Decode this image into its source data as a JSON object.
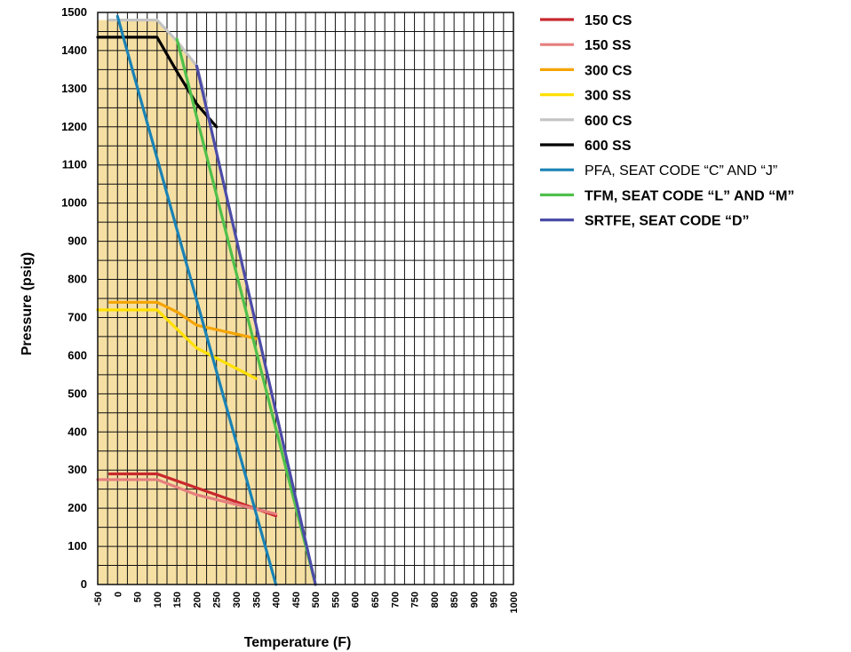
{
  "chart_data": {
    "type": "line",
    "xlabel": "Temperature (F)",
    "ylabel": "Pressure (psig)",
    "xlim": [
      -50,
      1000
    ],
    "ylim": [
      0,
      1500
    ],
    "x_ticks": [
      "-50",
      "0",
      "50",
      "100",
      "150",
      "200",
      "250",
      "300",
      "350",
      "400",
      "450",
      "500",
      "550",
      "600",
      "650",
      "700",
      "750",
      "800",
      "850",
      "900",
      "950",
      "1000"
    ],
    "y_ticks": [
      "0",
      "100",
      "200",
      "300",
      "400",
      "500",
      "600",
      "700",
      "800",
      "900",
      "1000",
      "1100",
      "1200",
      "1300",
      "1400",
      "1500"
    ],
    "grid": true,
    "legend_position": "top-right",
    "fill_color": "#f6dfa3",
    "fill_region": [
      [
        -50,
        0
      ],
      [
        -50,
        1480
      ],
      [
        100,
        1480
      ],
      [
        150,
        1425
      ],
      [
        200,
        1360
      ],
      [
        500,
        0
      ]
    ],
    "series": [
      {
        "name": "150 CS",
        "color": "#c8282d",
        "points": [
          [
            -20,
            290
          ],
          [
            100,
            290
          ],
          [
            400,
            180
          ]
        ]
      },
      {
        "name": "150 SS",
        "color": "#e57e7e",
        "points": [
          [
            -50,
            275
          ],
          [
            100,
            275
          ],
          [
            200,
            235
          ],
          [
            400,
            185
          ]
        ]
      },
      {
        "name": "300 CS",
        "color": "#f5a400",
        "points": [
          [
            -20,
            740
          ],
          [
            100,
            740
          ],
          [
            150,
            715
          ],
          [
            200,
            680
          ],
          [
            350,
            645
          ]
        ]
      },
      {
        "name": "300 SS",
        "color": "#ffe000",
        "points": [
          [
            -50,
            720
          ],
          [
            100,
            720
          ],
          [
            150,
            670
          ],
          [
            200,
            620
          ],
          [
            350,
            540
          ]
        ]
      },
      {
        "name": "600 CS",
        "color": "#c4c4c4",
        "points": [
          [
            -20,
            1480
          ],
          [
            100,
            1480
          ],
          [
            150,
            1425
          ],
          [
            200,
            1360
          ],
          [
            225,
            1265
          ]
        ]
      },
      {
        "name": "600 SS",
        "color": "#000000",
        "points": [
          [
            -50,
            1435
          ],
          [
            100,
            1435
          ],
          [
            150,
            1345
          ],
          [
            200,
            1260
          ],
          [
            250,
            1200
          ]
        ]
      },
      {
        "name": "PFA, SEAT CODE “C” AND “J”",
        "color": "#1a82b5",
        "points": [
          [
            0,
            1490
          ],
          [
            400,
            0
          ]
        ]
      },
      {
        "name": "TFM, SEAT CODE “L” AND “M”",
        "color": "#4fc04a",
        "points": [
          [
            150,
            1430
          ],
          [
            500,
            0
          ]
        ]
      },
      {
        "name": "SRTFE, SEAT CODE “D”",
        "color": "#4c4ca8",
        "points": [
          [
            200,
            1360
          ],
          [
            500,
            0
          ]
        ]
      }
    ]
  }
}
